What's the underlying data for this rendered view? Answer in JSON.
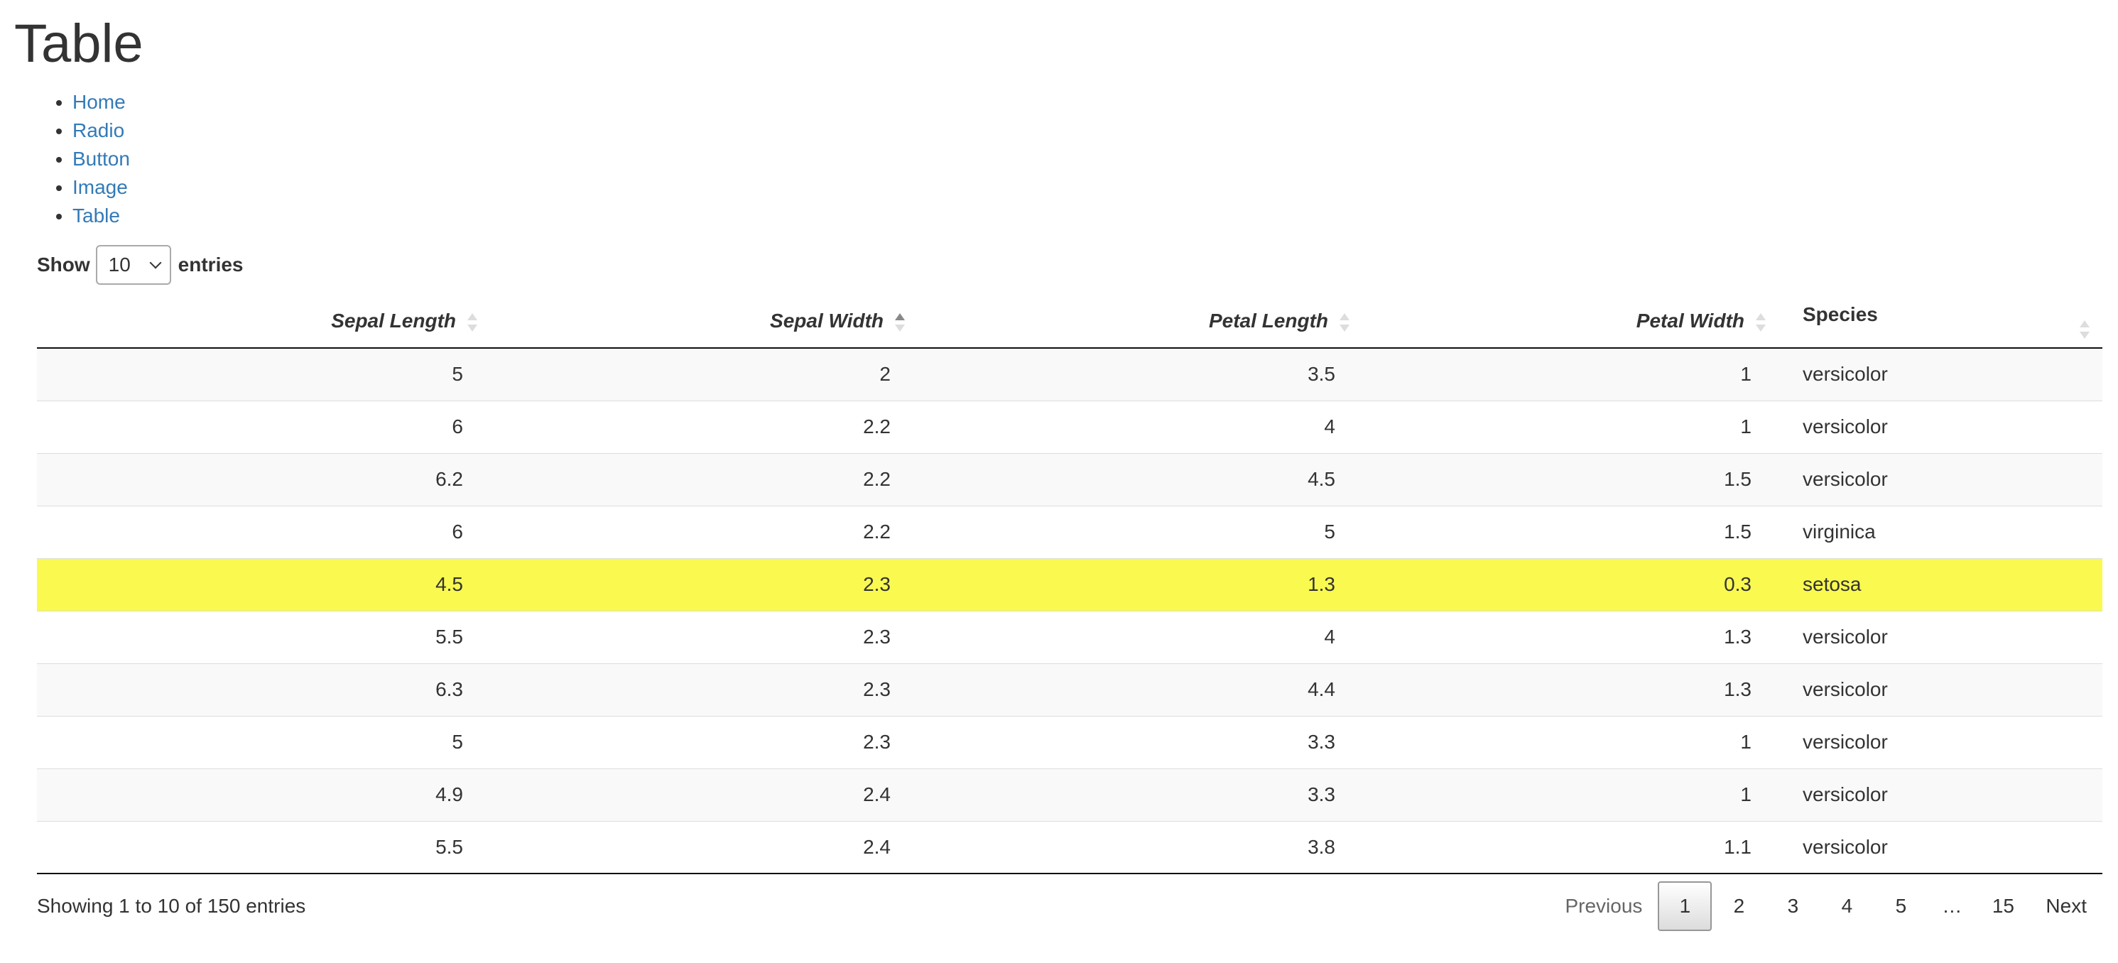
{
  "page": {
    "title": "Table"
  },
  "nav": {
    "items": [
      {
        "label": "Home"
      },
      {
        "label": "Radio"
      },
      {
        "label": "Button"
      },
      {
        "label": "Image"
      },
      {
        "label": "Table"
      }
    ]
  },
  "length": {
    "show_label": "Show",
    "selected": "10",
    "entries_label": "entries"
  },
  "table": {
    "columns": [
      {
        "label": "Sepal Length",
        "sort": "none"
      },
      {
        "label": "Sepal Width",
        "sort": "asc"
      },
      {
        "label": "Petal Length",
        "sort": "none"
      },
      {
        "label": "Petal Width",
        "sort": "none"
      },
      {
        "label": "Species",
        "sort": "none"
      }
    ],
    "rows": [
      [
        "5",
        "2",
        "3.5",
        "1",
        "versicolor"
      ],
      [
        "6",
        "2.2",
        "4",
        "1",
        "versicolor"
      ],
      [
        "6.2",
        "2.2",
        "4.5",
        "1.5",
        "versicolor"
      ],
      [
        "6",
        "2.2",
        "5",
        "1.5",
        "virginica"
      ],
      [
        "4.5",
        "2.3",
        "1.3",
        "0.3",
        "setosa"
      ],
      [
        "5.5",
        "2.3",
        "4",
        "1.3",
        "versicolor"
      ],
      [
        "6.3",
        "2.3",
        "4.4",
        "1.3",
        "versicolor"
      ],
      [
        "5",
        "2.3",
        "3.3",
        "1",
        "versicolor"
      ],
      [
        "4.9",
        "2.4",
        "3.3",
        "1",
        "versicolor"
      ],
      [
        "5.5",
        "2.4",
        "3.8",
        "1.1",
        "versicolor"
      ]
    ],
    "highlight_color": "#f9f950",
    "highlight_row": 5
  },
  "footer": {
    "info": "Showing 1 to 10 of 150 entries",
    "previous": "Previous",
    "next": "Next",
    "pages": [
      "1",
      "2",
      "3",
      "4",
      "5"
    ],
    "ellipsis": "…",
    "last_page": "15",
    "current_page": "1"
  }
}
